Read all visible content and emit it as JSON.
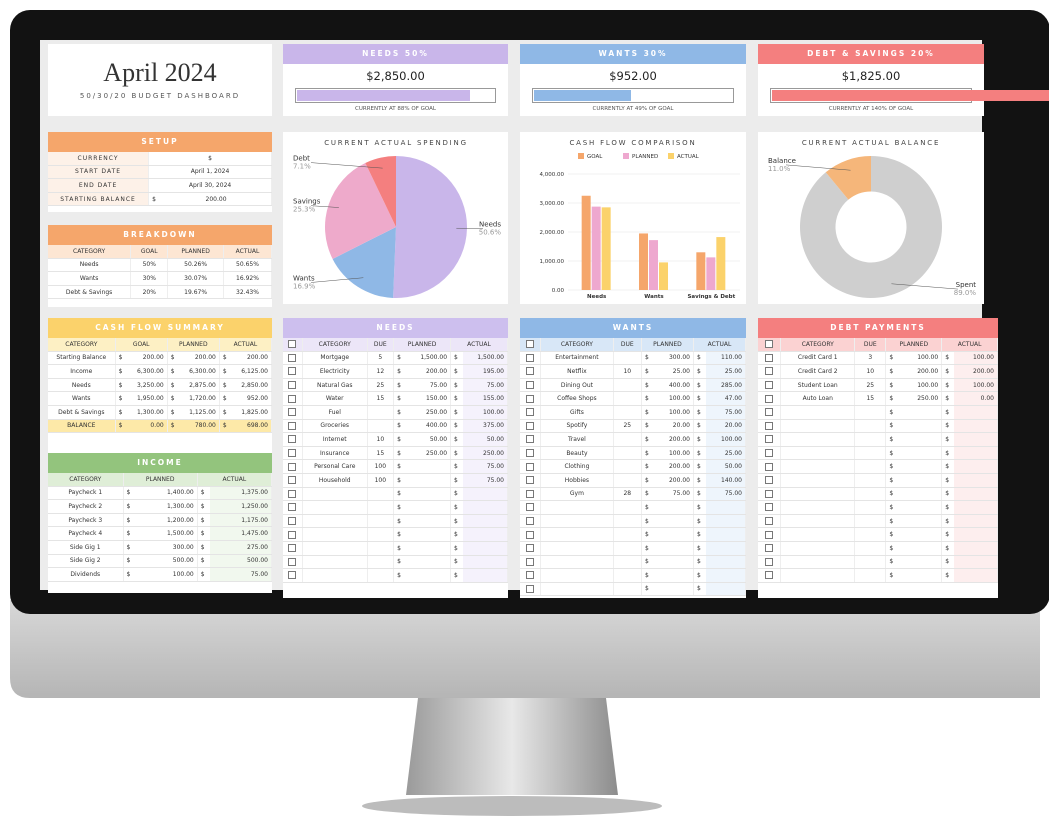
{
  "header": {
    "title": "April 2024",
    "subtitle": "50/30/20 BUDGET DASHBOARD"
  },
  "cards": [
    {
      "title": "NEEDS 50%",
      "amount": "$2,850.00",
      "progress": 88,
      "note": "CURRENTLY AT 88% OF GOAL",
      "color": "#c9b6ea"
    },
    {
      "title": "WANTS 30%",
      "amount": "$952.00",
      "progress": 49,
      "note": "CURRENTLY AT 49% OF GOAL",
      "color": "#8fb8e6"
    },
    {
      "title": "DEBT & SAVINGS 20%",
      "amount": "$1,825.00",
      "progress": 140,
      "note": "CURRENTLY AT 140% OF GOAL",
      "color": "#f47f7f"
    }
  ],
  "setup": {
    "title": "SETUP",
    "rows": [
      [
        "CURRENCY",
        "$"
      ],
      [
        "START DATE",
        "April 1, 2024"
      ],
      [
        "END DATE",
        "April 30, 2024"
      ],
      [
        "STARTING BALANCE",
        "$",
        "200.00"
      ]
    ]
  },
  "breakdown": {
    "title": "BREAKDOWN",
    "columns": [
      "CATEGORY",
      "GOAL",
      "PLANNED",
      "ACTUAL"
    ],
    "rows": [
      [
        "Needs",
        "50%",
        "50.26%",
        "50.65%"
      ],
      [
        "Wants",
        "30%",
        "30.07%",
        "16.92%"
      ],
      [
        "Debt & Savings",
        "20%",
        "19.67%",
        "32.43%"
      ]
    ]
  },
  "cash_flow_summary": {
    "title": "CASH FLOW SUMMARY",
    "columns": [
      "CATEGORY",
      "GOAL",
      "PLANNED",
      "ACTUAL"
    ],
    "rows": [
      [
        "Starting Balance",
        "200.00",
        "200.00",
        "200.00"
      ],
      [
        "Income",
        "6,300.00",
        "6,300.00",
        "6,125.00"
      ],
      [
        "Needs",
        "3,250.00",
        "2,875.00",
        "2,850.00"
      ],
      [
        "Wants",
        "1,950.00",
        "1,720.00",
        "952.00"
      ],
      [
        "Debt & Savings",
        "1,300.00",
        "1,125.00",
        "1,825.00"
      ],
      [
        "BALANCE",
        "0.00",
        "780.00",
        "698.00"
      ]
    ]
  },
  "income": {
    "title": "INCOME",
    "columns": [
      "CATEGORY",
      "PLANNED",
      "ACTUAL"
    ],
    "rows": [
      [
        "Paycheck 1",
        "1,400.00",
        "1,375.00"
      ],
      [
        "Paycheck 2",
        "1,300.00",
        "1,250.00"
      ],
      [
        "Paycheck 3",
        "1,200.00",
        "1,175.00"
      ],
      [
        "Paycheck 4",
        "1,500.00",
        "1,475.00"
      ],
      [
        "Side Gig 1",
        "300.00",
        "275.00"
      ],
      [
        "Side Gig 2",
        "500.00",
        "500.00"
      ],
      [
        "Dividends",
        "100.00",
        "75.00"
      ]
    ]
  },
  "needs": {
    "title": "NEEDS",
    "columns": [
      "CATEGORY",
      "DUE",
      "PLANNED",
      "ACTUAL"
    ],
    "rows": [
      [
        "Mortgage",
        "5",
        "1,500.00",
        "1,500.00"
      ],
      [
        "Electricity",
        "12",
        "200.00",
        "195.00"
      ],
      [
        "Natural Gas",
        "25",
        "75.00",
        "75.00"
      ],
      [
        "Water",
        "15",
        "150.00",
        "155.00"
      ],
      [
        "Fuel",
        null,
        "250.00",
        "100.00"
      ],
      [
        "Groceries",
        null,
        "400.00",
        "375.00"
      ],
      [
        "Internet",
        "10",
        "50.00",
        "50.00"
      ],
      [
        "Insurance",
        "15",
        "250.00",
        "250.00"
      ],
      [
        "Personal Care",
        "100",
        null,
        "75.00"
      ],
      [
        "Household",
        "100",
        null,
        "75.00"
      ]
    ]
  },
  "wants": {
    "title": "WANTS",
    "columns": [
      "CATEGORY",
      "DUE",
      "PLANNED",
      "ACTUAL"
    ],
    "rows": [
      [
        "Entertainment",
        null,
        "300.00",
        "110.00"
      ],
      [
        "Netflix",
        "10",
        "25.00",
        "25.00"
      ],
      [
        "Dining Out",
        null,
        "400.00",
        "285.00"
      ],
      [
        "Coffee Shops",
        null,
        "100.00",
        "47.00"
      ],
      [
        "Gifts",
        null,
        "100.00",
        "75.00"
      ],
      [
        "Spotify",
        "25",
        "20.00",
        "20.00"
      ],
      [
        "Travel",
        null,
        "200.00",
        "100.00"
      ],
      [
        "Beauty",
        null,
        "100.00",
        "25.00"
      ],
      [
        "Clothing",
        null,
        "200.00",
        "50.00"
      ],
      [
        "Hobbies",
        null,
        "200.00",
        "140.00"
      ],
      [
        "Gym",
        "28",
        "75.00",
        "75.00"
      ]
    ]
  },
  "debt_payments": {
    "title": "DEBT PAYMENTS",
    "columns": [
      "CATEGORY",
      "DUE",
      "PLANNED",
      "ACTUAL"
    ],
    "rows": [
      [
        "Credit Card 1",
        "3",
        "100.00",
        "100.00"
      ],
      [
        "Credit Card 2",
        "10",
        "200.00",
        "200.00"
      ],
      [
        "Student Loan",
        "25",
        "100.00",
        "100.00"
      ],
      [
        "Auto Loan",
        "15",
        "250.00",
        "0.00"
      ]
    ]
  },
  "charts": {
    "spending": {
      "type": "pie",
      "title": "CURRENT ACTUAL SPENDING",
      "labels": [
        "Needs",
        "Wants",
        "Savings",
        "Debt"
      ],
      "values": [
        50.6,
        16.9,
        25.3,
        7.1
      ],
      "value_labels": [
        "50.6%",
        "16.9%",
        "25.3%",
        "7.1%"
      ],
      "colors": [
        "#c9b6ea",
        "#8fb8e6",
        "#eeaacb",
        "#f47f7f"
      ]
    },
    "cash_flow": {
      "type": "bar",
      "title": "CASH FLOW COMPARISON",
      "categories": [
        "Needs",
        "Wants",
        "Savings & Debt"
      ],
      "series": [
        {
          "name": "GOAL",
          "color": "#f5a66b",
          "values": [
            3250,
            1950,
            1300
          ]
        },
        {
          "name": "PLANNED",
          "color": "#eea8cf",
          "values": [
            2875,
            1720,
            1125
          ]
        },
        {
          "name": "ACTUAL",
          "color": "#fbd26b",
          "values": [
            2850,
            952,
            1825
          ]
        }
      ],
      "ylim": [
        0,
        4000
      ],
      "yticks": [
        {
          "value": 0,
          "label": "0.00"
        },
        {
          "value": 1000,
          "label": "1,000.00"
        },
        {
          "value": 2000,
          "label": "2,000.00"
        },
        {
          "value": 3000,
          "label": "3,000.00"
        },
        {
          "value": 4000,
          "label": "4,000.00"
        }
      ]
    },
    "balance": {
      "type": "donut",
      "title": "CURRENT ACTUAL BALANCE",
      "labels": [
        "Spent",
        "Balance"
      ],
      "values": [
        89.0,
        11.0
      ],
      "value_labels": [
        "89.0%",
        "11.0%"
      ],
      "colors": [
        "#cfcfcf",
        "#f5b67a"
      ]
    }
  }
}
